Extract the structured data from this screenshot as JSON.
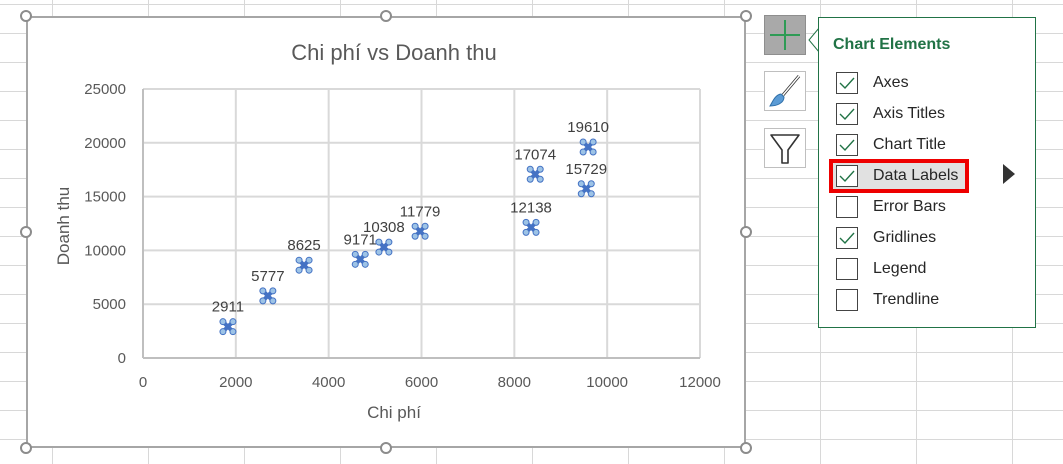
{
  "chart_data": {
    "type": "scatter",
    "title": "Chi phí vs Doanh thu",
    "xlabel": "Chi phí",
    "ylabel": "Doanh thu",
    "xlim": [
      0,
      12000
    ],
    "ylim": [
      0,
      25000
    ],
    "x_ticks": [
      "0",
      "2000",
      "4000",
      "6000",
      "8000",
      "10000",
      "12000"
    ],
    "y_ticks": [
      "0",
      "5000",
      "10000",
      "15000",
      "20000",
      "25000"
    ],
    "grid": true,
    "legend": false,
    "series": [
      {
        "name": "Doanh thu",
        "color": "#4472c4",
        "points": [
          {
            "x": 1830,
            "y": 2911,
            "label": "2911"
          },
          {
            "x": 2690,
            "y": 5777,
            "label": "5777"
          },
          {
            "x": 3470,
            "y": 8625,
            "label": "8625"
          },
          {
            "x": 4680,
            "y": 9171,
            "label": "9171"
          },
          {
            "x": 5190,
            "y": 10308,
            "label": "10308"
          },
          {
            "x": 5970,
            "y": 11779,
            "label": "11779"
          },
          {
            "x": 8360,
            "y": 12138,
            "label": "12138"
          },
          {
            "x": 8450,
            "y": 17074,
            "label": "17074"
          },
          {
            "x": 9550,
            "y": 15729,
            "label": "15729"
          },
          {
            "x": 9590,
            "y": 19610,
            "label": "19610"
          }
        ]
      }
    ]
  },
  "side_buttons": [
    {
      "name": "chart-elements",
      "icon": "plus-icon",
      "active": true
    },
    {
      "name": "chart-styles",
      "icon": "paintbrush-icon",
      "active": false
    },
    {
      "name": "chart-filters",
      "icon": "funnel-icon",
      "active": false
    }
  ],
  "panel": {
    "title": "Chart Elements",
    "accent": "#217346",
    "items": [
      {
        "label": "Axes",
        "checked": true
      },
      {
        "label": "Axis Titles",
        "checked": true
      },
      {
        "label": "Chart Title",
        "checked": true
      },
      {
        "label": "Data Labels",
        "checked": true,
        "highlighted": true,
        "has_submenu": true
      },
      {
        "label": "Error Bars",
        "checked": false
      },
      {
        "label": "Gridlines",
        "checked": true
      },
      {
        "label": "Legend",
        "checked": false
      },
      {
        "label": "Trendline",
        "checked": false
      }
    ]
  }
}
